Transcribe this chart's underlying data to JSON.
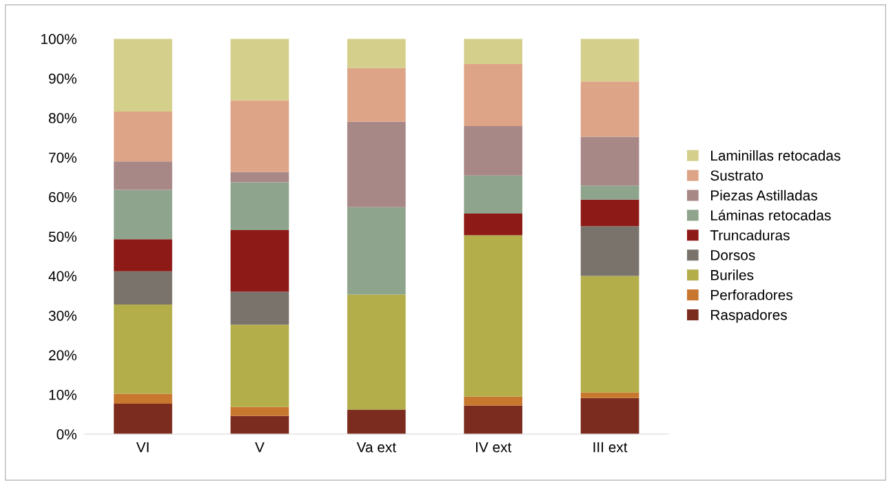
{
  "chart_data": {
    "type": "bar",
    "stacked": true,
    "categories": [
      "VI",
      "V",
      "Va ext",
      "IV ext",
      "III ext"
    ],
    "series": [
      {
        "name": "Raspadores",
        "color": "#7b2c1e",
        "values": [
          7.7,
          4.6,
          6.2,
          7.2,
          9.1
        ]
      },
      {
        "name": "Perforadores",
        "color": "#c8772e",
        "values": [
          2.5,
          2.3,
          0,
          2.3,
          1.4
        ]
      },
      {
        "name": "Buriles",
        "color": "#b3ad4a",
        "values": [
          22.6,
          20.8,
          29.1,
          40.8,
          29.5
        ]
      },
      {
        "name": "Dorsos",
        "color": "#7a736c",
        "values": [
          8.4,
          8.3,
          0,
          0,
          12.6
        ]
      },
      {
        "name": "Truncaduras",
        "color": "#8e1a17",
        "values": [
          8.1,
          15.6,
          0,
          5.5,
          6.7
        ]
      },
      {
        "name": "Láminas retocadas",
        "color": "#8fa48c",
        "values": [
          12.5,
          12.1,
          22.1,
          9.6,
          3.6
        ]
      },
      {
        "name": "Piezas Astilladas",
        "color": "#a88787",
        "values": [
          7.2,
          2.6,
          21.6,
          12.5,
          12.3
        ]
      },
      {
        "name": "Sustrato",
        "color": "#dea487",
        "values": [
          12.6,
          18.1,
          13.6,
          15.7,
          14.0
        ]
      },
      {
        "name": "Laminillas retocadas",
        "color": "#d5cf8c",
        "values": [
          18.4,
          15.6,
          7.4,
          6.4,
          10.8
        ]
      }
    ],
    "ylim": [
      0,
      100
    ],
    "yticks": [
      {
        "value": 0,
        "label": "0%"
      },
      {
        "value": 10,
        "label": "10%"
      },
      {
        "value": 20,
        "label": "20%"
      },
      {
        "value": 30,
        "label": "30%"
      },
      {
        "value": 40,
        "label": "40%"
      },
      {
        "value": 50,
        "label": "50%"
      },
      {
        "value": 60,
        "label": "60%"
      },
      {
        "value": 70,
        "label": "70%"
      },
      {
        "value": 80,
        "label": "80%"
      },
      {
        "value": 90,
        "label": "90%"
      },
      {
        "value": 100,
        "label": "100%"
      }
    ],
    "grid": false,
    "legend": "right"
  }
}
